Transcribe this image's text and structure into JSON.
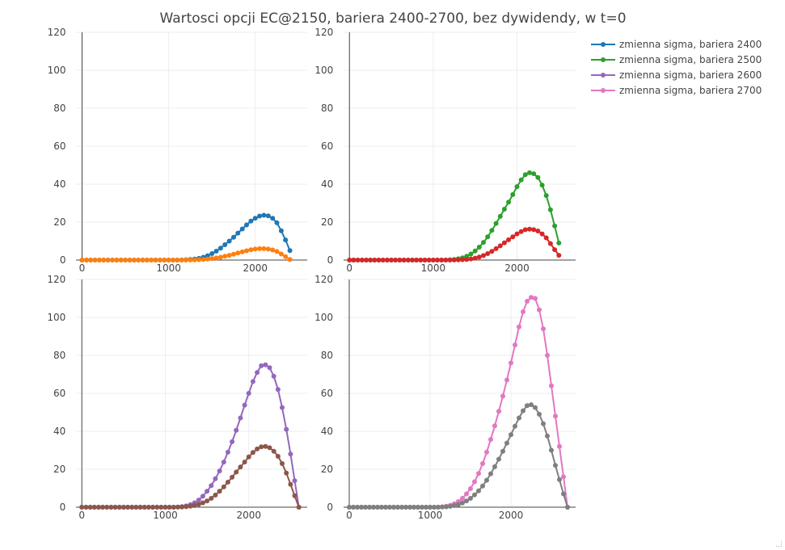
{
  "title": "Wartosci opcji EC@2150, bariera 2400-2700, bez dywidendy, w t=0",
  "chart_data": [
    {
      "type": "line",
      "panel": "top-left",
      "xlim": [
        -70,
        2600
      ],
      "ylim": [
        0,
        120
      ],
      "xticks": [
        0,
        1000,
        2000
      ],
      "yticks": [
        0,
        20,
        40,
        60,
        80,
        100,
        120
      ],
      "series": [
        {
          "name": "zmienna sigma, bariera 2400",
          "color": "#1f77b4",
          "x": [
            0,
            50,
            100,
            150,
            200,
            250,
            300,
            350,
            400,
            450,
            500,
            550,
            600,
            650,
            700,
            750,
            800,
            850,
            900,
            950,
            1000,
            1050,
            1100,
            1150,
            1200,
            1250,
            1300,
            1350,
            1400,
            1450,
            1500,
            1550,
            1600,
            1650,
            1700,
            1750,
            1800,
            1850,
            1900,
            1950,
            2000,
            2050,
            2100,
            2150,
            2200,
            2250,
            2300,
            2350,
            2400
          ],
          "y": [
            0,
            0,
            0,
            0,
            0,
            0,
            0,
            0,
            0,
            0,
            0,
            0,
            0,
            0,
            0,
            0,
            0,
            0,
            0,
            0,
            0,
            0,
            0.01,
            0.05,
            0.15,
            0.3,
            0.5,
            0.9,
            1.5,
            2.3,
            3.4,
            4.7,
            6.3,
            8.1,
            10,
            12,
            14.2,
            16.4,
            18.5,
            20.5,
            22,
            23.2,
            23.6,
            23.3,
            22,
            19.6,
            15.4,
            10.6,
            5
          ]
        },
        {
          "name": "",
          "color": "#ff7f0e",
          "x": [
            0,
            50,
            100,
            150,
            200,
            250,
            300,
            350,
            400,
            450,
            500,
            550,
            600,
            650,
            700,
            750,
            800,
            850,
            900,
            950,
            1000,
            1050,
            1100,
            1150,
            1200,
            1250,
            1300,
            1350,
            1400,
            1450,
            1500,
            1550,
            1600,
            1650,
            1700,
            1750,
            1800,
            1850,
            1900,
            1950,
            2000,
            2050,
            2100,
            2150,
            2200,
            2250,
            2300,
            2350,
            2400
          ],
          "y": [
            0,
            0,
            0,
            0,
            0,
            0,
            0,
            0,
            0,
            0,
            0,
            0,
            0,
            0,
            0,
            0,
            0,
            0,
            0,
            0,
            0,
            0,
            0,
            0.01,
            0.02,
            0.05,
            0.1,
            0.2,
            0.35,
            0.55,
            0.8,
            1.1,
            1.5,
            2,
            2.5,
            3.1,
            3.7,
            4.3,
            4.9,
            5.4,
            5.8,
            6,
            6,
            5.8,
            5.3,
            4.5,
            3.2,
            1.8,
            0.3
          ]
        }
      ]
    },
    {
      "type": "line",
      "panel": "top-right",
      "xlim": [
        -70,
        2700
      ],
      "ylim": [
        0,
        120
      ],
      "xticks": [
        0,
        1000,
        2000
      ],
      "yticks": [
        0,
        20,
        40,
        60,
        80,
        100,
        120
      ],
      "series": [
        {
          "name": "zmienna sigma, bariera 2500",
          "color": "#2ca02c",
          "x": [
            0,
            50,
            100,
            150,
            200,
            250,
            300,
            350,
            400,
            450,
            500,
            550,
            600,
            650,
            700,
            750,
            800,
            850,
            900,
            950,
            1000,
            1050,
            1100,
            1150,
            1200,
            1250,
            1300,
            1350,
            1400,
            1450,
            1500,
            1550,
            1600,
            1650,
            1700,
            1750,
            1800,
            1850,
            1900,
            1950,
            2000,
            2050,
            2100,
            2150,
            2200,
            2250,
            2300,
            2350,
            2400,
            2450,
            2500
          ],
          "y": [
            0,
            0,
            0,
            0,
            0,
            0,
            0,
            0,
            0,
            0,
            0,
            0,
            0,
            0,
            0,
            0,
            0,
            0,
            0,
            0,
            0,
            0,
            0,
            0.05,
            0.15,
            0.35,
            0.7,
            1.2,
            2,
            3.2,
            4.8,
            6.8,
            9.3,
            12.2,
            15.6,
            19.3,
            23,
            26.8,
            30.5,
            34.5,
            38.7,
            42.2,
            45,
            46,
            45.5,
            43.5,
            39.5,
            34,
            26.5,
            18,
            9
          ]
        },
        {
          "name": "",
          "color": "#d62728",
          "x": [
            0,
            50,
            100,
            150,
            200,
            250,
            300,
            350,
            400,
            450,
            500,
            550,
            600,
            650,
            700,
            750,
            800,
            850,
            900,
            950,
            1000,
            1050,
            1100,
            1150,
            1200,
            1250,
            1300,
            1350,
            1400,
            1450,
            1500,
            1550,
            1600,
            1650,
            1700,
            1750,
            1800,
            1850,
            1900,
            1950,
            2000,
            2050,
            2100,
            2150,
            2200,
            2250,
            2300,
            2350,
            2400,
            2450,
            2500
          ],
          "y": [
            0,
            0,
            0,
            0,
            0,
            0,
            0,
            0,
            0,
            0,
            0,
            0,
            0,
            0,
            0,
            0,
            0,
            0,
            0,
            0,
            0,
            0,
            0,
            0,
            0.02,
            0.05,
            0.1,
            0.2,
            0.35,
            0.6,
            1,
            1.6,
            2.4,
            3.4,
            4.6,
            6,
            7.5,
            9.1,
            10.7,
            12.2,
            13.8,
            15,
            16,
            16.3,
            16,
            15.3,
            13.8,
            11.7,
            8.7,
            5.5,
            2.5
          ]
        }
      ]
    },
    {
      "type": "line",
      "panel": "bottom-left",
      "xlim": [
        -70,
        2700
      ],
      "ylim": [
        0,
        120
      ],
      "xticks": [
        0,
        1000,
        2000
      ],
      "yticks": [
        0,
        20,
        40,
        60,
        80,
        100,
        120
      ],
      "series": [
        {
          "name": "zmienna sigma, bariera 2600",
          "color": "#9467bd",
          "x": [
            0,
            50,
            100,
            150,
            200,
            250,
            300,
            350,
            400,
            450,
            500,
            550,
            600,
            650,
            700,
            750,
            800,
            850,
            900,
            950,
            1000,
            1050,
            1100,
            1150,
            1200,
            1250,
            1300,
            1350,
            1400,
            1450,
            1500,
            1550,
            1600,
            1650,
            1700,
            1750,
            1800,
            1850,
            1900,
            1950,
            2000,
            2050,
            2100,
            2150,
            2200,
            2250,
            2300,
            2350,
            2400,
            2450,
            2500,
            2550,
            2600
          ],
          "y": [
            0,
            0,
            0,
            0,
            0,
            0,
            0,
            0,
            0,
            0,
            0,
            0,
            0,
            0,
            0,
            0,
            0,
            0,
            0,
            0,
            0,
            0,
            0.02,
            0.1,
            0.3,
            0.7,
            1.3,
            2.3,
            3.8,
            5.8,
            8.4,
            11.4,
            15,
            19.1,
            23.8,
            29,
            34.5,
            40.5,
            47,
            53.8,
            60,
            66.2,
            71,
            74.5,
            75,
            73.5,
            69,
            62,
            52.5,
            41,
            28,
            14,
            0
          ]
        },
        {
          "name": "",
          "color": "#8c564b",
          "x": [
            0,
            50,
            100,
            150,
            200,
            250,
            300,
            350,
            400,
            450,
            500,
            550,
            600,
            650,
            700,
            750,
            800,
            850,
            900,
            950,
            1000,
            1050,
            1100,
            1150,
            1200,
            1250,
            1300,
            1350,
            1400,
            1450,
            1500,
            1550,
            1600,
            1650,
            1700,
            1750,
            1800,
            1850,
            1900,
            1950,
            2000,
            2050,
            2100,
            2150,
            2200,
            2250,
            2300,
            2350,
            2400,
            2450,
            2500,
            2550,
            2600
          ],
          "y": [
            0,
            0,
            0,
            0,
            0,
            0,
            0,
            0,
            0,
            0,
            0,
            0,
            0,
            0,
            0,
            0,
            0,
            0,
            0,
            0,
            0,
            0,
            0,
            0.03,
            0.1,
            0.25,
            0.5,
            0.9,
            1.5,
            2.3,
            3.3,
            4.7,
            6.4,
            8.4,
            10.7,
            13.2,
            15.8,
            18.5,
            21.2,
            23.8,
            26.5,
            28.8,
            30.7,
            31.8,
            32,
            31.3,
            29.5,
            26.8,
            23,
            18,
            12,
            6,
            0
          ]
        }
      ]
    },
    {
      "type": "line",
      "panel": "bottom-right",
      "xlim": [
        -70,
        2800
      ],
      "ylim": [
        0,
        120
      ],
      "xticks": [
        0,
        1000,
        2000
      ],
      "yticks": [
        0,
        20,
        40,
        60,
        80,
        100,
        120
      ],
      "series": [
        {
          "name": "zmienna sigma, bariera 2700",
          "color": "#e377c2",
          "x": [
            0,
            50,
            100,
            150,
            200,
            250,
            300,
            350,
            400,
            450,
            500,
            550,
            600,
            650,
            700,
            750,
            800,
            850,
            900,
            950,
            1000,
            1050,
            1100,
            1150,
            1200,
            1250,
            1300,
            1350,
            1400,
            1450,
            1500,
            1550,
            1600,
            1650,
            1700,
            1750,
            1800,
            1850,
            1900,
            1950,
            2000,
            2050,
            2100,
            2150,
            2200,
            2250,
            2300,
            2350,
            2400,
            2450,
            2500,
            2550,
            2600,
            2650,
            2700
          ],
          "y": [
            0,
            0,
            0,
            0,
            0,
            0,
            0,
            0,
            0,
            0,
            0,
            0,
            0,
            0,
            0,
            0,
            0,
            0,
            0,
            0,
            0,
            0,
            0.05,
            0.2,
            0.5,
            1,
            1.8,
            3,
            4.7,
            7,
            9.8,
            13.4,
            17.8,
            23,
            29,
            35.7,
            42.9,
            50.5,
            58.5,
            67,
            76,
            85.5,
            95,
            103,
            108.5,
            110.5,
            110,
            104,
            94,
            80,
            64,
            48,
            32,
            16,
            0
          ]
        },
        {
          "name": "",
          "color": "#7f7f7f",
          "x": [
            0,
            50,
            100,
            150,
            200,
            250,
            300,
            350,
            400,
            450,
            500,
            550,
            600,
            650,
            700,
            750,
            800,
            850,
            900,
            950,
            1000,
            1050,
            1100,
            1150,
            1200,
            1250,
            1300,
            1350,
            1400,
            1450,
            1500,
            1550,
            1600,
            1650,
            1700,
            1750,
            1800,
            1850,
            1900,
            1950,
            2000,
            2050,
            2100,
            2150,
            2200,
            2250,
            2300,
            2350,
            2400,
            2450,
            2500,
            2550,
            2600,
            2650,
            2700
          ],
          "y": [
            0,
            0,
            0,
            0,
            0,
            0,
            0,
            0,
            0,
            0,
            0,
            0,
            0,
            0,
            0,
            0,
            0,
            0,
            0,
            0,
            0,
            0,
            0.02,
            0.08,
            0.2,
            0.45,
            0.85,
            1.4,
            2.2,
            3.3,
            4.7,
            6.5,
            8.6,
            11.2,
            14.2,
            17.6,
            21.3,
            25.3,
            29.5,
            33.8,
            38.2,
            42.7,
            47,
            50.8,
            53.5,
            54,
            52.5,
            49,
            44,
            37.5,
            30,
            22,
            14.5,
            7,
            0
          ]
        }
      ]
    }
  ],
  "legend": {
    "placement": "top-right",
    "items": [
      {
        "label": "zmienna sigma, bariera 2400",
        "color": "#1f77b4"
      },
      {
        "label": "zmienna sigma, bariera 2500",
        "color": "#2ca02c"
      },
      {
        "label": "zmienna sigma, bariera 2600",
        "color": "#9467bd"
      },
      {
        "label": "zmienna sigma, bariera 2700",
        "color": "#e377c2"
      }
    ]
  }
}
